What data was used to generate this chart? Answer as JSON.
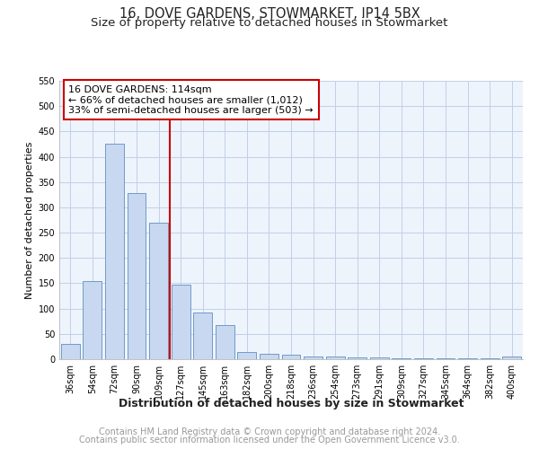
{
  "title1": "16, DOVE GARDENS, STOWMARKET, IP14 5BX",
  "title2": "Size of property relative to detached houses in Stowmarket",
  "xlabel": "Distribution of detached houses by size in Stowmarket",
  "ylabel": "Number of detached properties",
  "categories": [
    "36sqm",
    "54sqm",
    "72sqm",
    "90sqm",
    "109sqm",
    "127sqm",
    "145sqm",
    "163sqm",
    "182sqm",
    "200sqm",
    "218sqm",
    "236sqm",
    "254sqm",
    "273sqm",
    "291sqm",
    "309sqm",
    "327sqm",
    "345sqm",
    "364sqm",
    "382sqm",
    "400sqm"
  ],
  "values": [
    30,
    155,
    425,
    328,
    270,
    147,
    92,
    68,
    14,
    10,
    8,
    5,
    5,
    4,
    3,
    2,
    2,
    2,
    2,
    1,
    5
  ],
  "bar_color": "#c8d8f0",
  "bar_edge_color": "#6090c0",
  "vline_x": 4.5,
  "vline_color": "#cc0000",
  "annotation_text": "16 DOVE GARDENS: 114sqm\n← 66% of detached houses are smaller (1,012)\n33% of semi-detached houses are larger (503) →",
  "annotation_box_color": "#ffffff",
  "annotation_box_edge": "#cc0000",
  "ylim": [
    0,
    550
  ],
  "yticks": [
    0,
    50,
    100,
    150,
    200,
    250,
    300,
    350,
    400,
    450,
    500,
    550
  ],
  "footer1": "Contains HM Land Registry data © Crown copyright and database right 2024.",
  "footer2": "Contains public sector information licensed under the Open Government Licence v3.0.",
  "bg_color": "#ffffff",
  "plot_bg_color": "#eef4fc",
  "grid_color": "#c0d0e8",
  "title_fontsize": 10.5,
  "subtitle_fontsize": 9.5,
  "xlabel_fontsize": 9,
  "ylabel_fontsize": 8,
  "tick_fontsize": 7,
  "footer_fontsize": 7,
  "annotation_fontsize": 8
}
